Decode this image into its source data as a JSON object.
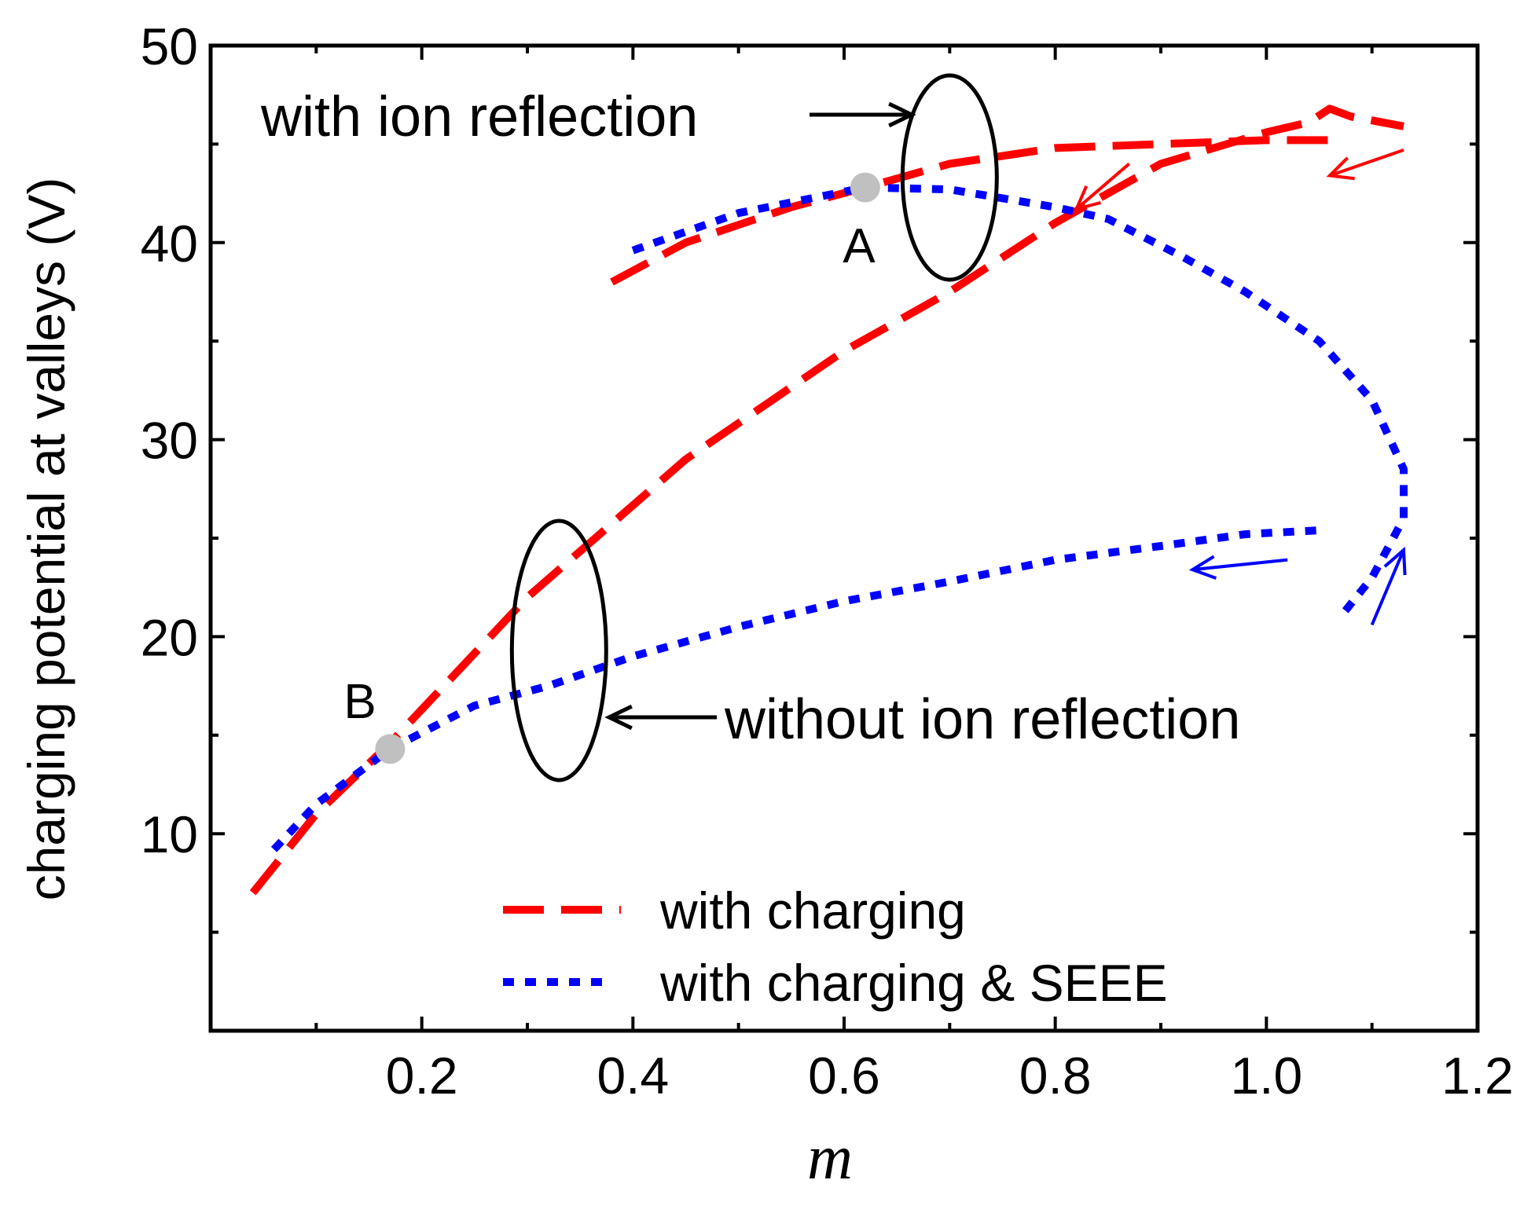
{
  "chart_data": {
    "type": "line",
    "title": "",
    "xlabel": "m",
    "ylabel": "charging potential at valleys (V)",
    "xlim": [
      0.0,
      1.2
    ],
    "ylim": [
      0,
      50
    ],
    "x_ticks": [
      0.2,
      0.4,
      0.6,
      0.8,
      1.0,
      1.2
    ],
    "x_tick_labels": [
      "0.2",
      "0.4",
      "0.6",
      "0.8",
      "1.0",
      "1.2"
    ],
    "y_ticks": [
      10,
      20,
      30,
      40,
      50
    ],
    "y_tick_labels": [
      "10",
      "20",
      "30",
      "40",
      "50"
    ],
    "legend_position": "bottom-center",
    "series": [
      {
        "name": "with charging",
        "color": "#ff0000",
        "style": "dashed",
        "branches": [
          [
            [
              0.04,
              7.0
            ],
            [
              0.1,
              11.0
            ],
            [
              0.17,
              14.6
            ],
            [
              0.3,
              22.0
            ],
            [
              0.45,
              29.0
            ],
            [
              0.6,
              34.5
            ],
            [
              0.7,
              37.5
            ],
            [
              0.8,
              41.0
            ],
            [
              0.9,
              44.0
            ],
            [
              1.0,
              45.6
            ],
            [
              1.04,
              46.1
            ],
            [
              1.06,
              46.8
            ],
            [
              1.08,
              46.4
            ],
            [
              1.13,
              45.9
            ]
          ],
          [
            [
              0.38,
              38.0
            ],
            [
              0.45,
              40.0
            ],
            [
              0.55,
              41.8
            ],
            [
              0.62,
              42.8
            ],
            [
              0.7,
              44.0
            ],
            [
              0.8,
              44.8
            ],
            [
              0.9,
              45.0
            ],
            [
              1.0,
              45.2
            ],
            [
              1.06,
              45.2
            ],
            [
              1.07,
              44.8
            ]
          ]
        ]
      },
      {
        "name": "with charging & SEEE",
        "color": "#0000ff",
        "style": "dotted",
        "branches": [
          [
            [
              0.06,
              9.2
            ],
            [
              0.1,
              11.5
            ],
            [
              0.17,
              14.3
            ],
            [
              0.25,
              16.5
            ],
            [
              0.32,
              17.5
            ],
            [
              0.4,
              19.0
            ],
            [
              0.5,
              20.5
            ],
            [
              0.6,
              21.8
            ],
            [
              0.7,
              22.8
            ],
            [
              0.8,
              23.9
            ],
            [
              0.9,
              24.6
            ],
            [
              0.98,
              25.2
            ],
            [
              1.05,
              25.4
            ]
          ],
          [
            [
              0.4,
              39.6
            ],
            [
              0.5,
              41.5
            ],
            [
              0.62,
              42.8
            ],
            [
              0.7,
              42.7
            ],
            [
              0.8,
              41.8
            ],
            [
              0.85,
              41.2
            ],
            [
              0.92,
              39.3
            ],
            [
              0.98,
              37.5
            ],
            [
              1.05,
              35.0
            ],
            [
              1.1,
              32.0
            ],
            [
              1.13,
              28.5
            ],
            [
              1.13,
              26.0
            ],
            [
              1.1,
              23.0
            ],
            [
              1.07,
              21.0
            ]
          ]
        ]
      }
    ],
    "points": [
      {
        "label": "A",
        "x": 0.62,
        "y": 42.8,
        "color": "#c0c0c0"
      },
      {
        "label": "B",
        "x": 0.17,
        "y": 14.3,
        "color": "#c0c0c0"
      }
    ],
    "annotations": [
      {
        "text": "with ion reflection",
        "ellipse_center": [
          0.7,
          43.3
        ]
      },
      {
        "text": "without ion reflection",
        "ellipse_center": [
          0.33,
          19.3
        ]
      }
    ],
    "arrows": [
      {
        "color": "#ff0000",
        "from": [
          0.87,
          44.0
        ],
        "to": [
          0.82,
          41.7
        ]
      },
      {
        "color": "#ff0000",
        "from": [
          1.13,
          44.7
        ],
        "to": [
          1.06,
          43.4
        ]
      },
      {
        "color": "#0000ff",
        "from": [
          1.02,
          23.9
        ],
        "to": [
          0.93,
          23.4
        ]
      },
      {
        "color": "#0000ff",
        "from": [
          1.1,
          20.6
        ],
        "to": [
          1.13,
          24.4
        ]
      }
    ]
  }
}
